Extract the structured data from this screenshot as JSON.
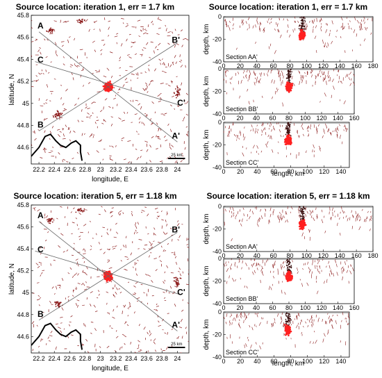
{
  "chart_data": [
    {
      "type": "scatter",
      "title": "Source location: iteration 1, err = 1.7 km",
      "xlabel": "longitude, E",
      "ylabel": "latitude, N",
      "xlim": [
        22.1,
        24.15
      ],
      "ylim": [
        44.45,
        45.8
      ],
      "x_ticks": [
        "22.2",
        "22.4",
        "22.6",
        "22.8",
        "23",
        "23.2",
        "23.4",
        "23.6",
        "23.8",
        "24"
      ],
      "y_ticks": [
        "44.6",
        "44.8",
        "45",
        "45.2",
        "45.4",
        "45.6",
        "45.8"
      ],
      "scale_bar": "25 km",
      "profile_labels": [
        "A",
        "A'",
        "B",
        "B'",
        "C",
        "C'"
      ],
      "profiles": [
        {
          "name": "AA'",
          "from": [
            22.2,
            45.65
          ],
          "to": [
            24.0,
            44.65
          ]
        },
        {
          "name": "BB'",
          "from": [
            22.2,
            44.75
          ],
          "to": [
            24.0,
            45.55
          ]
        },
        {
          "name": "CC'",
          "from": [
            22.15,
            45.38
          ],
          "to": [
            24.05,
            44.98
          ]
        }
      ],
      "cluster_center": [
        23.1,
        45.15
      ]
    },
    {
      "type": "scatter",
      "title": "Source location: iteration 1, err = 1.7 km",
      "ylabel": "depth, km",
      "sections": [
        {
          "name": "Section AA'",
          "xlim": [
            0,
            180
          ],
          "x_ticks": [
            "0",
            "20",
            "40",
            "60",
            "80",
            "100",
            "120",
            "140",
            "160",
            "180"
          ],
          "ylim": [
            -40,
            0
          ],
          "y_ticks": [
            "0",
            "-20",
            "-40"
          ],
          "cluster": [
            95,
            -16
          ]
        },
        {
          "name": "Section BB'",
          "xlim": [
            0,
            160
          ],
          "x_ticks": [
            "0",
            "20",
            "40",
            "60",
            "80",
            "100",
            "120",
            "140",
            "160"
          ],
          "ylim": [
            -40,
            0
          ],
          "y_ticks": [
            "0",
            "-20",
            "-40"
          ],
          "cluster": [
            80,
            -16
          ]
        },
        {
          "name": "Section CC'",
          "xlim": [
            0,
            150
          ],
          "x_ticks": [
            "0",
            "20",
            "40",
            "60",
            "80",
            "100",
            "120",
            "140"
          ],
          "ylim": [
            -40,
            0
          ],
          "y_ticks": [
            "0",
            "-20",
            "-40"
          ],
          "cluster": [
            77,
            -16
          ]
        }
      ],
      "xlabel": "length, km"
    },
    {
      "type": "scatter",
      "title": "Source location: iteration 5, err = 1.18 km",
      "xlabel": "longitude, E",
      "ylabel": "latitude, N",
      "xlim": [
        22.1,
        24.15
      ],
      "ylim": [
        44.45,
        45.8
      ],
      "x_ticks": [
        "22.2",
        "22.4",
        "22.6",
        "22.8",
        "23",
        "23.2",
        "23.4",
        "23.6",
        "23.8",
        "24"
      ],
      "y_ticks": [
        "44.6",
        "44.8",
        "45",
        "45.2",
        "45.4",
        "45.6",
        "45.8"
      ],
      "scale_bar": "25 km",
      "profile_labels": [
        "A",
        "A'",
        "B",
        "B'",
        "C",
        "C'"
      ],
      "cluster_center": [
        23.1,
        45.15
      ]
    },
    {
      "type": "scatter",
      "title": "Source location: iteration 5, err = 1.18 km",
      "ylabel": "depth, km",
      "sections": [
        {
          "name": "Section AA'",
          "xlim": [
            0,
            180
          ],
          "x_ticks": [
            "0",
            "20",
            "40",
            "60",
            "80",
            "100",
            "120",
            "140",
            "160",
            "180"
          ],
          "ylim": [
            -40,
            0
          ],
          "y_ticks": [
            "0",
            "-20",
            "-40"
          ],
          "cluster": [
            95,
            -16
          ]
        },
        {
          "name": "Section BB'",
          "xlim": [
            0,
            160
          ],
          "x_ticks": [
            "0",
            "20",
            "40",
            "60",
            "80",
            "100",
            "120",
            "140",
            "160"
          ],
          "ylim": [
            -40,
            0
          ],
          "y_ticks": [
            "0",
            "-20",
            "-40"
          ],
          "cluster": [
            80,
            -16
          ]
        },
        {
          "name": "Section CC'",
          "xlim": [
            0,
            150
          ],
          "x_ticks": [
            "0",
            "20",
            "40",
            "60",
            "80",
            "100",
            "120",
            "140"
          ],
          "ylim": [
            -40,
            0
          ],
          "y_ticks": [
            "0",
            "-20",
            "-40"
          ],
          "cluster": [
            77,
            -16
          ]
        }
      ],
      "xlabel": "length, km"
    }
  ],
  "colors": {
    "event": "#8b1a1a",
    "cluster": "#ff2020",
    "coast": "#000000",
    "profile": "#666666"
  }
}
